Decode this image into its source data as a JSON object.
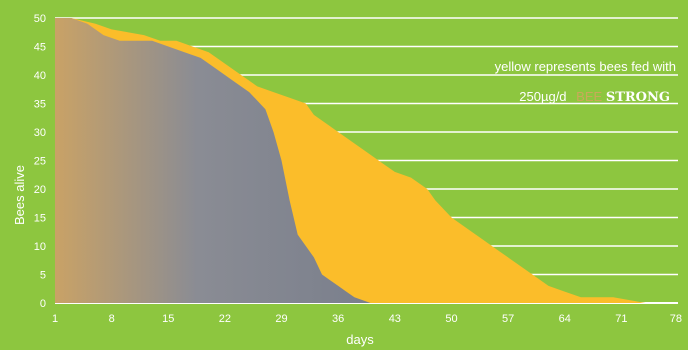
{
  "chart_data": {
    "type": "area",
    "title": "",
    "xlabel": "days",
    "ylabel": "Bees alive",
    "xlim": [
      1,
      78
    ],
    "ylim": [
      0,
      50
    ],
    "x_ticks": [
      "1",
      "8",
      "15",
      "22",
      "29",
      "36",
      "43",
      "50",
      "57",
      "64",
      "71",
      "78"
    ],
    "y_ticks": [
      "0",
      "5",
      "10",
      "15",
      "20",
      "25",
      "30",
      "35",
      "40",
      "45",
      "50"
    ],
    "grid": true,
    "annotation": {
      "line1": "yellow represents bees fed with",
      "line2_dose": "250µg/d",
      "line2_brand_prefix": "BEE",
      "line2_brand_strong": "STRONG"
    },
    "series": [
      {
        "color": "#fbbd2a",
        "points": [
          [
            1,
            50
          ],
          [
            3,
            50
          ],
          [
            6,
            49
          ],
          [
            8,
            48
          ],
          [
            12,
            47
          ],
          [
            14,
            46
          ],
          [
            16,
            46
          ],
          [
            18,
            45
          ],
          [
            20,
            44
          ],
          [
            22,
            42
          ],
          [
            24,
            40
          ],
          [
            26,
            38
          ],
          [
            28,
            37
          ],
          [
            30,
            36
          ],
          [
            32,
            35
          ],
          [
            33,
            33
          ],
          [
            35,
            31
          ],
          [
            37,
            29
          ],
          [
            39,
            27
          ],
          [
            41,
            25
          ],
          [
            43,
            23
          ],
          [
            45,
            22
          ],
          [
            47,
            20
          ],
          [
            48,
            18
          ],
          [
            50,
            15
          ],
          [
            52,
            13
          ],
          [
            54,
            11
          ],
          [
            56,
            9
          ],
          [
            58,
            7
          ],
          [
            60,
            5
          ],
          [
            62,
            3
          ],
          [
            64,
            2
          ],
          [
            66,
            1
          ],
          [
            68,
            1
          ],
          [
            70,
            1
          ],
          [
            72,
            0.5
          ],
          [
            74,
            0
          ]
        ]
      },
      {
        "color": "#7f8590",
        "points": [
          [
            1,
            50
          ],
          [
            3,
            50
          ],
          [
            5,
            49
          ],
          [
            7,
            47
          ],
          [
            9,
            46
          ],
          [
            11,
            46
          ],
          [
            13,
            46
          ],
          [
            15,
            45
          ],
          [
            17,
            44
          ],
          [
            19,
            43
          ],
          [
            21,
            41
          ],
          [
            23,
            39
          ],
          [
            25,
            37
          ],
          [
            27,
            34
          ],
          [
            28,
            30
          ],
          [
            29,
            25
          ],
          [
            30,
            18
          ],
          [
            31,
            12
          ],
          [
            32,
            10
          ],
          [
            33,
            8
          ],
          [
            34,
            5
          ],
          [
            35,
            4
          ],
          [
            36,
            3
          ],
          [
            37,
            2
          ],
          [
            38,
            1
          ],
          [
            39,
            0.5
          ],
          [
            40,
            0
          ]
        ]
      }
    ]
  }
}
